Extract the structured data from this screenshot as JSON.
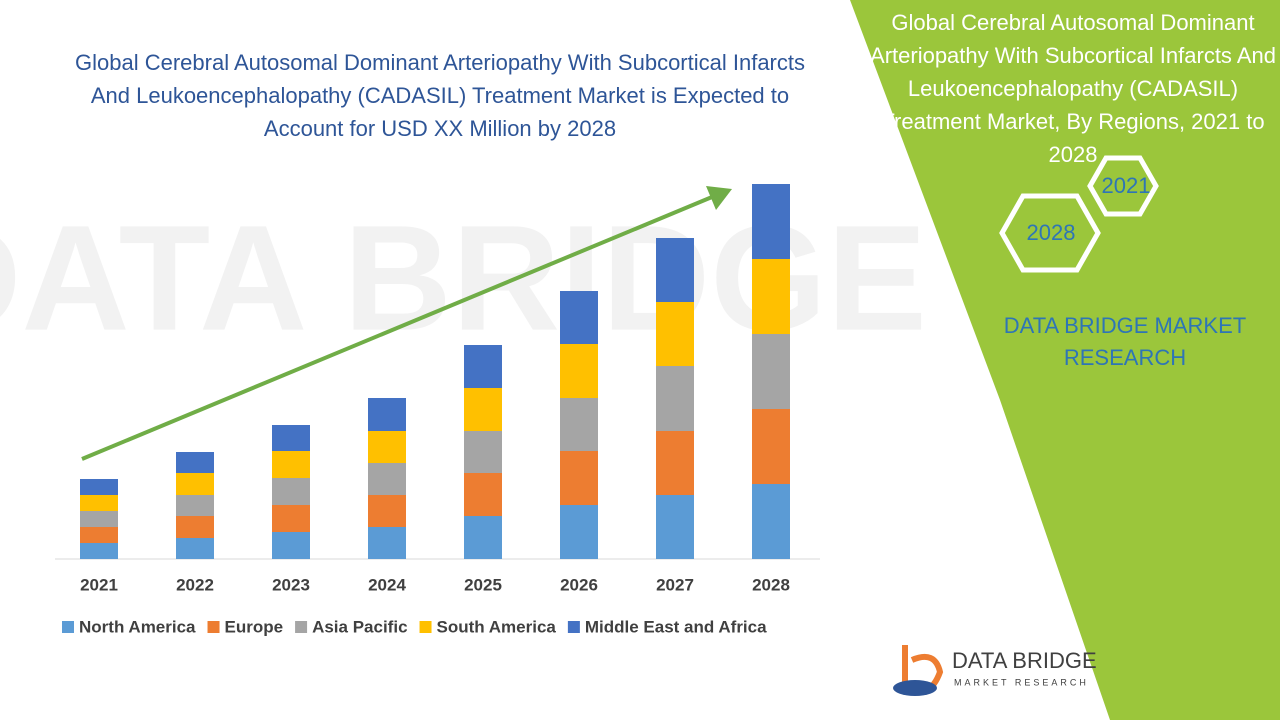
{
  "chart_data": {
    "type": "bar",
    "stacked": true,
    "title": "Global Cerebral Autosomal Dominant Arteriopathy With Subcortical Infarcts And Leukoencephalopathy (CADASIL) Treatment Market is Expected to Account for USD XX Million by 2028",
    "categories": [
      "2021",
      "2022",
      "2023",
      "2024",
      "2025",
      "2026",
      "2027",
      "2028"
    ],
    "series": [
      {
        "name": "North America",
        "color": "#5b9bd5",
        "values": [
          16,
          21,
          27,
          32,
          43,
          54,
          64,
          75
        ]
      },
      {
        "name": "Europe",
        "color": "#ed7d31",
        "values": [
          16,
          22,
          27,
          32,
          43,
          54,
          64,
          75
        ]
      },
      {
        "name": "Asia Pacific",
        "color": "#a5a5a5",
        "values": [
          16,
          21,
          27,
          32,
          42,
          53,
          65,
          75
        ]
      },
      {
        "name": "South America",
        "color": "#ffc000",
        "values": [
          16,
          22,
          27,
          32,
          43,
          54,
          64,
          75
        ]
      },
      {
        "name": "Middle East and Africa",
        "color": "#4472c4",
        "values": [
          16,
          21,
          26,
          33,
          43,
          53,
          64,
          75
        ]
      }
    ],
    "legend": "bottom"
  },
  "side_panel": {
    "title": "Global Cerebral  Autosomal Dominant Arteriopathy With Subcortical Infarcts And Leukoencephalopathy (CADASIL) Treatment Market, By Regions, 2021 to 2028",
    "hexagons": [
      "2021",
      "2028"
    ],
    "brand": "DATA BRIDGE MARKET RESEARCH"
  },
  "logo": {
    "name": "DATA BRIDGE",
    "tagline": "MARKET RESEARCH"
  }
}
